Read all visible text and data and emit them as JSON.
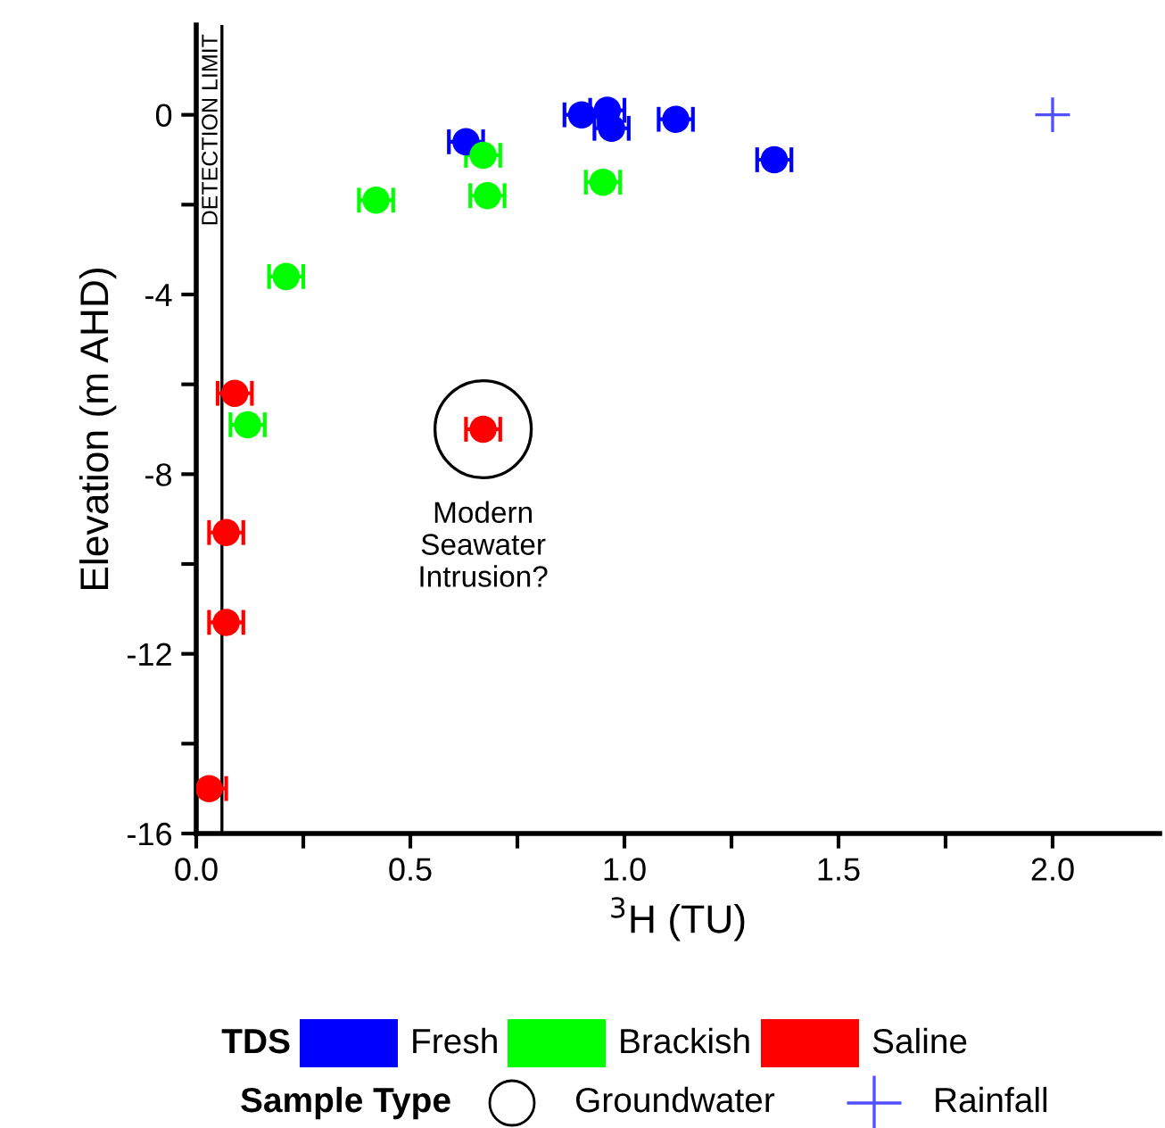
{
  "chart_data": {
    "type": "scatter",
    "xlabel": "$^{3}$H (TU)",
    "ylabel": "Elevation (m AHD)",
    "legend_title": "TDS",
    "xlim": [
      0,
      2.25
    ],
    "ylim": [
      -16,
      2
    ],
    "xticks": [
      {
        "value": 0,
        "label": "0.0"
      },
      {
        "value": 0.25,
        "label": null
      },
      {
        "value": 0.5,
        "label": "0.5"
      },
      {
        "value": 0.75,
        "label": null
      },
      {
        "value": 1,
        "label": "1.0"
      },
      {
        "value": 1.25,
        "label": null
      },
      {
        "value": 1.5,
        "label": "1.5"
      },
      {
        "value": 1.75,
        "label": null
      },
      {
        "value": 2,
        "label": "2.0"
      }
    ],
    "yticks": [
      -16,
      {
        "value": -14,
        "label": null
      },
      -12,
      {
        "value": -10,
        "label": null
      },
      -8,
      {
        "value": -6,
        "label": null
      },
      -4,
      {
        "value": -2,
        "label": null
      },
      0
    ],
    "grid": false,
    "legend": "bottom",
    "marker": "circle",
    "series": [
      {
        "name": "Fresh",
        "color": "#0000ff",
        "x": [
          0.63,
          0.9,
          0.96,
          0.97,
          1.12,
          1.35
        ],
        "values": [
          -0.6,
          0,
          0.1,
          -0.3,
          -0.1,
          -1.0
        ],
        "xerrors": [
          0.04,
          0.04,
          0.04,
          0.04,
          0.04,
          0.04
        ]
      },
      {
        "name": "Brackish",
        "color": "#00ff00",
        "x": [
          0.67,
          0.42,
          0.68,
          0.95,
          0.21,
          0.12
        ],
        "values": [
          -0.9,
          -1.9,
          -1.8,
          -1.5,
          -3.6,
          -6.9
        ],
        "xerrors": [
          0.04,
          0.04,
          0.04,
          0.04,
          0.04,
          0.04
        ]
      },
      {
        "name": "Saline",
        "color": "#ff0000",
        "x": [
          0.09,
          0.67,
          0.07,
          0.07,
          0.03
        ],
        "values": [
          -6.2,
          -7.0,
          -9.3,
          -11.3,
          -15.0
        ],
        "xerrors": [
          0.04,
          0.04,
          0.04,
          0.04,
          0.04
        ]
      },
      {
        "name": "Rainfall",
        "color": "#5050ff",
        "marker": "cross",
        "x": [
          2.0
        ],
        "values": [
          0
        ]
      }
    ],
    "ref_lines": [
      {
        "axis": "x",
        "value": 0.06,
        "label": "DETECTION LIMIT",
        "color": "#000000"
      }
    ],
    "annotations": [
      {
        "text": "Modern\nSeawater\nIntrusion?",
        "x": 0.67,
        "y": -7.0
      },
      "Sample Type",
      "Groundwater"
    ]
  }
}
